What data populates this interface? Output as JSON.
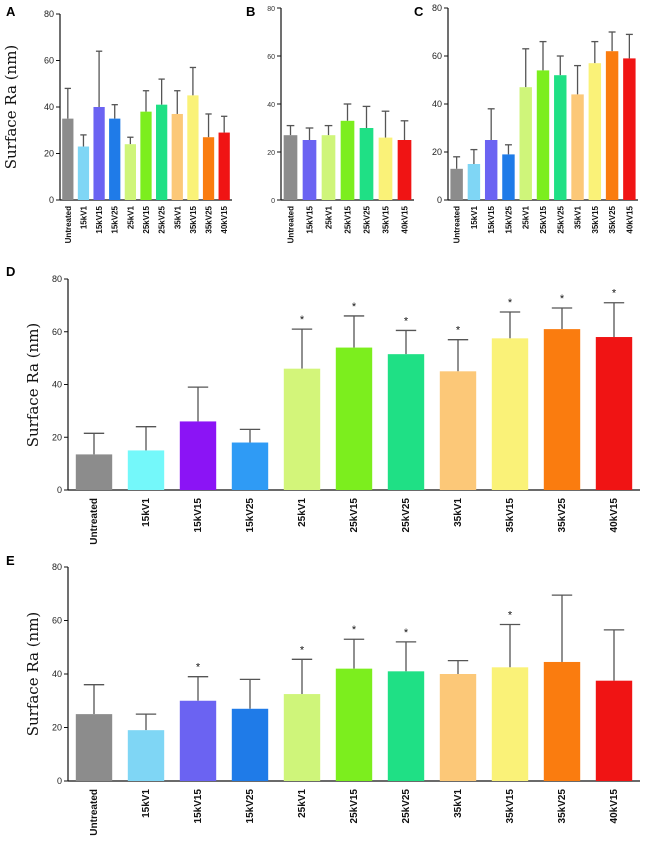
{
  "chart_data": [
    {
      "panel": "A",
      "type": "bar",
      "ylabel": "Surface Ra (nm)",
      "ylim": [
        0,
        80
      ],
      "yticks": [
        "0",
        "20",
        "40",
        "60",
        "80"
      ],
      "categories": [
        "Untreated",
        "15kV1",
        "15kV15",
        "15kV25",
        "25kV1",
        "25kV15",
        "25kV25",
        "35kV1",
        "35kV15",
        "35kV25",
        "40kV15"
      ],
      "values": [
        35,
        23,
        40,
        35,
        24,
        38,
        41,
        37,
        45,
        27,
        29
      ],
      "errors": [
        13,
        5,
        24,
        6,
        3,
        9,
        11,
        10,
        12,
        10,
        7
      ],
      "stars": [
        false,
        false,
        false,
        false,
        false,
        false,
        false,
        false,
        false,
        false,
        false
      ]
    },
    {
      "panel": "B",
      "type": "bar",
      "ylabel": "",
      "ylim": [
        0,
        80
      ],
      "yticks": [
        "0",
        "20",
        "40",
        "60",
        "80"
      ],
      "categories": [
        "Untreated",
        "15kV15",
        "25kV1",
        "25kV15",
        "25kV25",
        "35kV15",
        "40kV15"
      ],
      "values": [
        27,
        25,
        27,
        33,
        30,
        26,
        25
      ],
      "errors": [
        4,
        5,
        4,
        7,
        9,
        11,
        8
      ],
      "stars": [
        false,
        false,
        false,
        false,
        false,
        false,
        false
      ]
    },
    {
      "panel": "C",
      "type": "bar",
      "ylabel": "",
      "ylim": [
        0,
        80
      ],
      "yticks": [
        "0",
        "20",
        "40",
        "60",
        "80"
      ],
      "categories": [
        "Untreated",
        "15kV1",
        "15kV15",
        "15kV25",
        "25kV1",
        "25kV15",
        "25kV25",
        "35kV1",
        "35kV15",
        "35kV25",
        "40kV15"
      ],
      "values": [
        13,
        15,
        25,
        19,
        47,
        54,
        52,
        44,
        57,
        62,
        59
      ],
      "errors": [
        5,
        6,
        13,
        4,
        16,
        12,
        8,
        12,
        9,
        8,
        10
      ],
      "stars": [
        false,
        false,
        false,
        false,
        false,
        false,
        false,
        false,
        false,
        false,
        false
      ]
    },
    {
      "panel": "D",
      "type": "bar",
      "ylabel": "Surface Ra (nm)",
      "ylim": [
        0,
        80
      ],
      "yticks": [
        "0",
        "20",
        "40",
        "60",
        "80"
      ],
      "categories": [
        "Untreated",
        "15kV1",
        "15kV15",
        "15kV25",
        "25kV1",
        "25kV15",
        "25kV25",
        "35kV1",
        "35kV15",
        "35kV25",
        "40kV15"
      ],
      "values": [
        13.5,
        15,
        26,
        18,
        46,
        54,
        51.5,
        45,
        57.5,
        61,
        58
      ],
      "errors": [
        8,
        9,
        13,
        5,
        15,
        12,
        9,
        12,
        10,
        8,
        13
      ],
      "stars": [
        false,
        false,
        false,
        false,
        true,
        true,
        true,
        true,
        true,
        true,
        true
      ]
    },
    {
      "panel": "E",
      "type": "bar",
      "ylabel": "Surface Ra (nm)",
      "ylim": [
        0,
        80
      ],
      "yticks": [
        "0",
        "20",
        "40",
        "60",
        "80"
      ],
      "categories": [
        "Untreated",
        "15kV1",
        "15kV15",
        "15kV25",
        "25kV1",
        "25kV15",
        "25kV25",
        "35kV1",
        "35kV15",
        "35kV25",
        "40kV15"
      ],
      "values": [
        25,
        19,
        30,
        27,
        32.5,
        42,
        41,
        40,
        42.5,
        44.5,
        37.5
      ],
      "errors": [
        11,
        6,
        9,
        11,
        13,
        11,
        11,
        5,
        16,
        25,
        19
      ],
      "stars": [
        false,
        false,
        true,
        false,
        true,
        true,
        true,
        false,
        true,
        false,
        false
      ]
    }
  ],
  "colors": {
    "Untreated": "#8c8c8c",
    "15kV1": "#7fd6f5",
    "15kV15": "#6b63f2",
    "15kV25": "#1f7be8",
    "25kV1": "#cff57a",
    "25kV15": "#7cee1e",
    "25kV25": "#1fe085",
    "35kV1": "#fcc878",
    "35kV15": "#faf278",
    "35kV25": "#fa7c0f",
    "40kV15": "#f01414"
  },
  "colors_D": {
    "Untreated": "#8c8c8c",
    "15kV1": "#74f8fa",
    "15kV15": "#8b14f5",
    "15kV25": "#2f9bf5",
    "25kV1": "#d3f57a",
    "25kV15": "#7cee1e",
    "25kV25": "#1fe085",
    "35kV1": "#fcc878",
    "35kV15": "#faf278",
    "35kV25": "#fa7c0f",
    "40kV15": "#f01414"
  },
  "star_symbol": "*"
}
